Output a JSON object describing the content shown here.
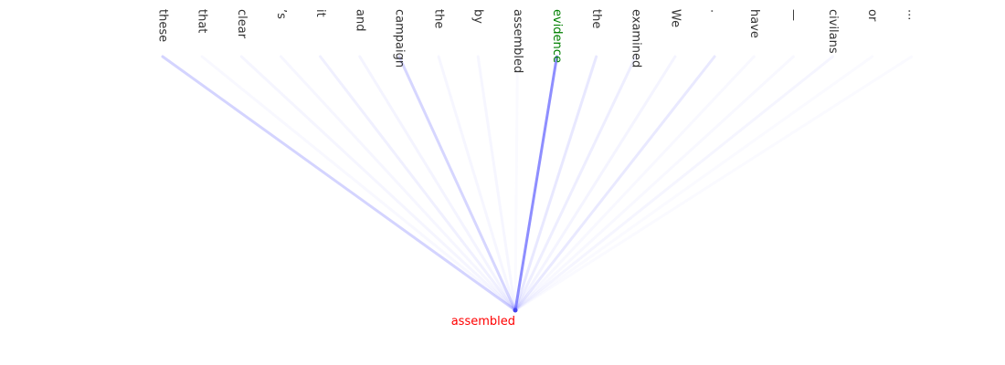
{
  "diagram": {
    "source_tokens": [
      {
        "text": "these",
        "weight": 0.3
      },
      {
        "text": "that",
        "weight": 0.02
      },
      {
        "text": "clear",
        "weight": 0.04
      },
      {
        "text": "’s",
        "weight": 0.03
      },
      {
        "text": "it",
        "weight": 0.08
      },
      {
        "text": "and",
        "weight": 0.05
      },
      {
        "text": "campaign",
        "weight": 0.28
      },
      {
        "text": "the",
        "weight": 0.03
      },
      {
        "text": "by",
        "weight": 0.03
      },
      {
        "text": "assembled",
        "weight": 0.0
      },
      {
        "text": "evidence",
        "weight": 0.85,
        "highlight": true
      },
      {
        "text": "the",
        "weight": 0.14
      },
      {
        "text": "examined",
        "weight": 0.09
      },
      {
        "text": "We",
        "weight": 0.05
      },
      {
        "text": ".",
        "weight": 0.13
      },
      {
        "text": "have",
        "weight": 0.02
      },
      {
        "text": "—",
        "weight": 0.01
      },
      {
        "text": "civilans",
        "weight": 0.04
      },
      {
        "text": "or",
        "weight": 0.0
      },
      {
        "text": "...",
        "weight": 0.0
      }
    ],
    "target_token": {
      "text": "assembled"
    },
    "colors": {
      "edge": "#5555ff",
      "target_text": "#ff0000",
      "highlight_text": "#008000",
      "token_text": "#333333",
      "point": "#4444ee"
    }
  }
}
